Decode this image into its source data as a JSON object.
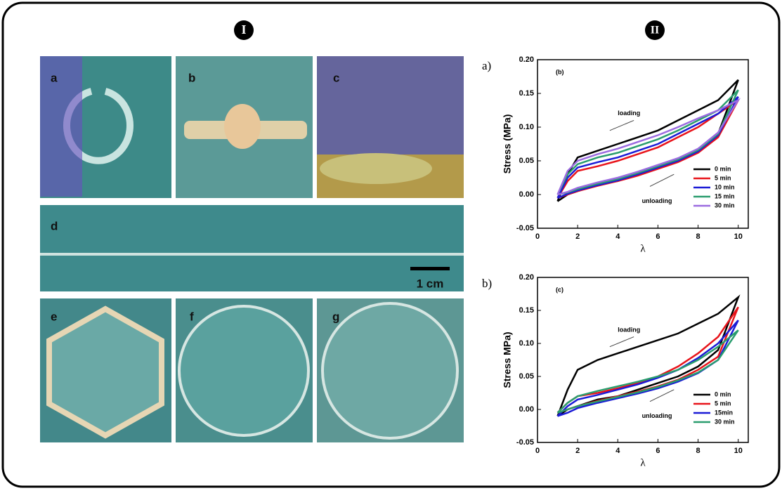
{
  "section_labels": [
    "I",
    "II"
  ],
  "photos": {
    "labels": [
      "a",
      "b",
      "c",
      "d",
      "e",
      "f",
      "g"
    ],
    "scale_bar": "1 cm"
  },
  "chart_data": [
    {
      "type": "line",
      "panel_label": "a)",
      "inset_label": "(b)",
      "ylabel": "Stress (MPa)",
      "xlabel": "λ",
      "annotations": [
        "loading",
        "unloading"
      ],
      "xlim": [
        0,
        10.5
      ],
      "xticks": [
        0,
        2,
        4,
        6,
        8,
        10
      ],
      "ylim": [
        -0.05,
        0.2
      ],
      "yticks": [
        -0.05,
        {
          "value": 0,
          "label": "0.00"
        },
        0.05,
        {
          "value": 0.1,
          "label": "0.10"
        },
        0.15,
        {
          "value": 0.2,
          "label": "0.20"
        }
      ],
      "x": [
        1,
        1.5,
        2,
        3,
        4,
        5,
        6,
        7,
        8,
        9,
        10,
        9,
        8,
        7,
        6,
        5,
        4,
        3,
        2,
        1.5,
        1
      ],
      "series": [
        {
          "name": "0 min",
          "color": "#000000",
          "values": [
            -0.01,
            0.03,
            0.055,
            0.065,
            0.075,
            0.085,
            0.095,
            0.11,
            0.125,
            0.14,
            0.17,
            0.09,
            0.065,
            0.05,
            0.04,
            0.03,
            0.02,
            0.015,
            0.005,
            0,
            -0.01
          ]
        },
        {
          "name": "5 min",
          "color": "#e8141b",
          "values": [
            -0.005,
            0.02,
            0.035,
            0.042,
            0.05,
            0.06,
            0.07,
            0.085,
            0.1,
            0.12,
            0.14,
            0.085,
            0.062,
            0.048,
            0.038,
            0.028,
            0.02,
            0.013,
            0.005,
            0,
            -0.005
          ]
        },
        {
          "name": "10 min",
          "color": "#1b1bd6",
          "values": [
            -0.005,
            0.025,
            0.04,
            0.048,
            0.055,
            0.065,
            0.075,
            0.09,
            0.105,
            0.12,
            0.145,
            0.088,
            0.064,
            0.05,
            0.04,
            0.03,
            0.021,
            0.014,
            0.006,
            0.001,
            -0.005
          ]
        },
        {
          "name": "15 min",
          "color": "#2a9d6e",
          "values": [
            0,
            0.03,
            0.045,
            0.055,
            0.062,
            0.072,
            0.082,
            0.095,
            0.11,
            0.125,
            0.155,
            0.09,
            0.066,
            0.052,
            0.042,
            0.032,
            0.023,
            0.016,
            0.008,
            0.003,
            0
          ]
        },
        {
          "name": "30 min",
          "color": "#9b6be0",
          "values": [
            0,
            0.035,
            0.05,
            0.06,
            0.068,
            0.078,
            0.088,
            0.1,
            0.113,
            0.125,
            0.14,
            0.092,
            0.068,
            0.054,
            0.044,
            0.034,
            0.025,
            0.018,
            0.01,
            0.004,
            0
          ]
        }
      ]
    },
    {
      "type": "line",
      "panel_label": "b)",
      "inset_label": "(c)",
      "ylabel": "Stress MPa)",
      "xlabel": "λ",
      "annotations": [
        "loading",
        "unloading"
      ],
      "xlim": [
        0,
        10.5
      ],
      "xticks": [
        0,
        2,
        4,
        6,
        8,
        10
      ],
      "ylim": [
        -0.05,
        0.2
      ],
      "yticks": [
        -0.05,
        {
          "value": 0,
          "label": "0.00"
        },
        0.05,
        {
          "value": 0.1,
          "label": "0.10"
        },
        0.15,
        {
          "value": 0.2,
          "label": "0.20"
        }
      ],
      "x": [
        1,
        1.5,
        2,
        3,
        4,
        5,
        6,
        7,
        8,
        9,
        10,
        9,
        8,
        7,
        6,
        5,
        4,
        3,
        2,
        1.5,
        1
      ],
      "series": [
        {
          "name": "0 min",
          "color": "#000000",
          "values": [
            -0.01,
            0.03,
            0.06,
            0.075,
            0.085,
            0.095,
            0.105,
            0.115,
            0.13,
            0.145,
            0.17,
            0.09,
            0.065,
            0.05,
            0.04,
            0.03,
            0.02,
            0.015,
            0.005,
            0,
            -0.01
          ]
        },
        {
          "name": "5 min",
          "color": "#e8141b",
          "values": [
            -0.005,
            0.01,
            0.02,
            0.025,
            0.032,
            0.04,
            0.05,
            0.065,
            0.085,
            0.11,
            0.155,
            0.08,
            0.06,
            0.045,
            0.035,
            0.027,
            0.02,
            0.013,
            0.005,
            0,
            -0.005
          ]
        },
        {
          "name": "15min",
          "color": "#1b1bd6",
          "values": [
            -0.01,
            0.005,
            0.015,
            0.022,
            0.03,
            0.038,
            0.048,
            0.06,
            0.078,
            0.1,
            0.135,
            0.075,
            0.055,
            0.042,
            0.032,
            0.024,
            0.017,
            0.01,
            0.002,
            -0.005,
            -0.01
          ]
        },
        {
          "name": "30 min",
          "color": "#2a9d6e",
          "values": [
            -0.005,
            0.01,
            0.02,
            0.028,
            0.035,
            0.042,
            0.05,
            0.06,
            0.075,
            0.095,
            0.12,
            0.075,
            0.056,
            0.044,
            0.034,
            0.026,
            0.019,
            0.012,
            0.005,
            0,
            -0.005
          ]
        }
      ]
    }
  ]
}
